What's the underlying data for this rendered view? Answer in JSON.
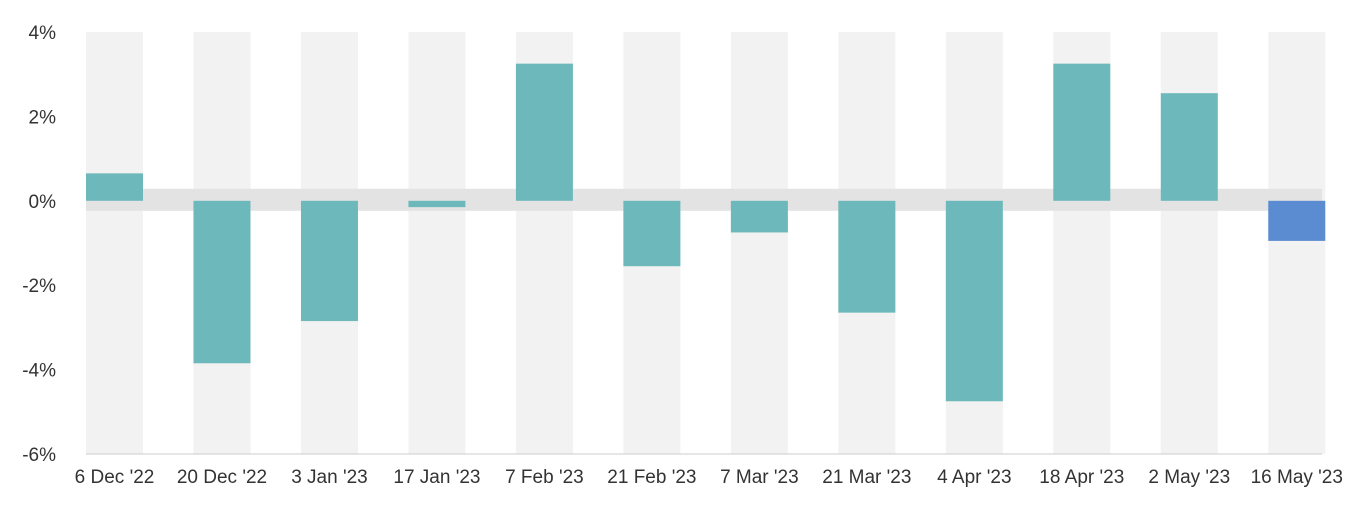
{
  "chart_data": {
    "type": "bar",
    "categories": [
      "6 Dec '22",
      "20 Dec '22",
      "3 Jan '23",
      "17 Jan '23",
      "7 Feb '23",
      "21 Feb '23",
      "7 Mar '23",
      "21 Mar '23",
      "4 Apr '23",
      "18 Apr '23",
      "2 May '23",
      "16 May '23"
    ],
    "series": [
      {
        "values": [
          0.65,
          -3.85,
          -2.85,
          -0.15,
          3.25,
          -1.55,
          -0.75,
          -2.65,
          -4.75,
          3.25,
          2.55,
          -0.95
        ]
      }
    ],
    "ylim": [
      -6,
      4
    ],
    "yticks": [
      4,
      2,
      0,
      -2,
      -4,
      -6
    ],
    "ytick_labels": [
      "4%",
      "2%",
      "0%",
      "-2%",
      "-4%",
      "-6%"
    ],
    "title": "",
    "xlabel": "",
    "ylabel": "",
    "grid": false,
    "legend": "none",
    "colors": {
      "bar": "#6db8ba",
      "highlight_bar": "#5b8bd0",
      "band": "#f2f2f2",
      "zero_band": "#e3e3e3",
      "axis": "#cccccc",
      "text": "#333333"
    },
    "highlight_index": 11
  }
}
